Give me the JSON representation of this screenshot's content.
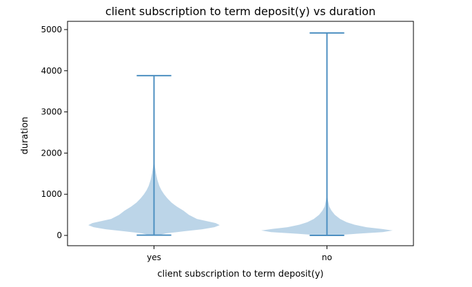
{
  "chart_data": {
    "type": "violin",
    "title": "client subscription to term deposit(y) vs duration",
    "xlabel": "client subscription to term deposit(y)",
    "ylabel": "duration",
    "categories": [
      "yes",
      "no"
    ],
    "ylim": [
      -250,
      5200
    ],
    "yticks": [
      0,
      1000,
      2000,
      3000,
      4000,
      5000
    ],
    "grid": false,
    "colors": {
      "fill": "#bcd5e8",
      "line": "#4c8fc1",
      "axis": "#000000"
    },
    "series": [
      {
        "category": "yes",
        "min": 8,
        "max": 3881,
        "density": [
          [
            0,
            0.05
          ],
          [
            50,
            0.18
          ],
          [
            100,
            0.45
          ],
          [
            150,
            0.72
          ],
          [
            200,
            0.9
          ],
          [
            250,
            0.98
          ],
          [
            300,
            0.92
          ],
          [
            350,
            0.78
          ],
          [
            400,
            0.64
          ],
          [
            500,
            0.52
          ],
          [
            600,
            0.44
          ],
          [
            700,
            0.34
          ],
          [
            800,
            0.26
          ],
          [
            900,
            0.2
          ],
          [
            1000,
            0.15
          ],
          [
            1100,
            0.11
          ],
          [
            1200,
            0.08
          ],
          [
            1350,
            0.05
          ],
          [
            1500,
            0.03
          ],
          [
            1650,
            0.015
          ],
          [
            1800,
            0.007
          ],
          [
            2000,
            0.003
          ],
          [
            2400,
            0.001
          ],
          [
            3881,
            0.0003
          ]
        ]
      },
      {
        "category": "no",
        "min": 0,
        "max": 4918,
        "density": [
          [
            0,
            0.1
          ],
          [
            40,
            0.45
          ],
          [
            80,
            0.85
          ],
          [
            120,
            1.0
          ],
          [
            160,
            0.82
          ],
          [
            200,
            0.6
          ],
          [
            260,
            0.42
          ],
          [
            320,
            0.3
          ],
          [
            400,
            0.2
          ],
          [
            500,
            0.12
          ],
          [
            600,
            0.07
          ],
          [
            700,
            0.035
          ],
          [
            850,
            0.015
          ],
          [
            1000,
            0.006
          ],
          [
            1500,
            0.002
          ],
          [
            2500,
            0.0008
          ],
          [
            4918,
            0.0002
          ]
        ]
      }
    ]
  }
}
